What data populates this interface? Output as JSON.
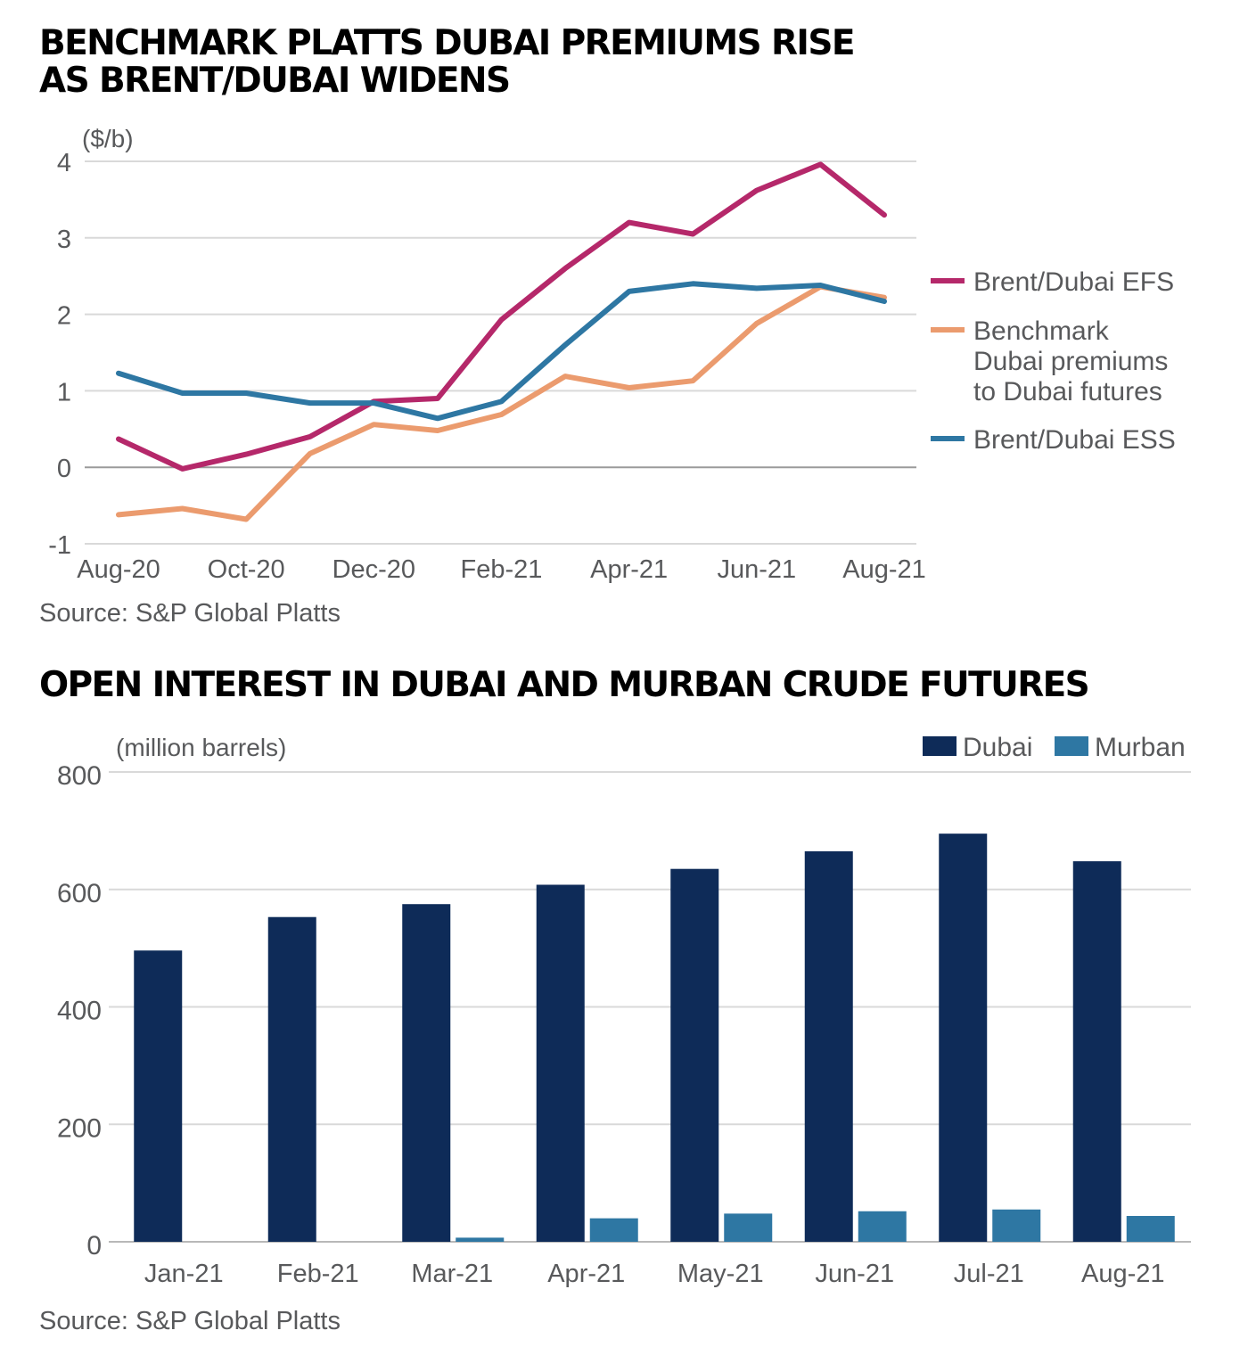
{
  "chart1": {
    "title_lines": [
      "BENCHMARK PLATTS DUBAI PREMIUMS RISE",
      "AS BRENT/DUBAI WIDENS"
    ],
    "source": "Source: S&P Global Platts",
    "chart_data": {
      "type": "line",
      "unit_label": "($/b)",
      "x": [
        "Aug-20",
        "Sep-20",
        "Oct-20",
        "Nov-20",
        "Dec-20",
        "Jan-21",
        "Feb-21",
        "Mar-21",
        "Apr-21",
        "May-21",
        "Jun-21",
        "Jul-21",
        "Aug-21"
      ],
      "x_tick_labels": [
        "Aug-20",
        "Oct-20",
        "Dec-20",
        "Feb-21",
        "Apr-21",
        "Jun-21",
        "Aug-21"
      ],
      "y_ticks": [
        "4",
        "3",
        "2",
        "1",
        "0",
        "-1"
      ],
      "ylim": [
        -1,
        4
      ],
      "legend_position": "right",
      "grid": true,
      "series": [
        {
          "name": "Brent/Dubai EFS",
          "color": "#b5286a",
          "values": [
            0.37,
            -0.02,
            0.17,
            0.4,
            0.86,
            0.9,
            1.93,
            2.6,
            3.2,
            3.05,
            3.62,
            3.96,
            3.3
          ]
        },
        {
          "name": "Benchmark Dubai premiums to Dubai futures",
          "color": "#eb9b6e",
          "legend_lines": [
            "Benchmark",
            "Dubai premiums",
            "to Dubai futures"
          ],
          "values": [
            -0.62,
            -0.54,
            -0.68,
            0.18,
            0.56,
            0.48,
            0.69,
            1.19,
            1.04,
            1.13,
            1.88,
            2.36,
            2.22
          ]
        },
        {
          "name": "Brent/Dubai ESS",
          "color": "#2e77a3",
          "values": [
            1.23,
            0.97,
            0.97,
            0.84,
            0.84,
            0.64,
            0.86,
            1.6,
            2.3,
            2.4,
            2.34,
            2.38,
            2.17
          ]
        }
      ]
    }
  },
  "chart2": {
    "title": "OPEN INTEREST IN DUBAI AND MURBAN CRUDE FUTURES",
    "source": "Source: S&P Global Platts",
    "chart_data": {
      "type": "bar",
      "unit_label": "(million barrels)",
      "categories": [
        "Jan-21",
        "Feb-21",
        "Mar-21",
        "Apr-21",
        "May-21",
        "Jun-21",
        "Jul-21",
        "Aug-21"
      ],
      "y_ticks": [
        "800",
        "600",
        "400",
        "200",
        "0"
      ],
      "ylim": [
        0,
        800
      ],
      "legend_position": "top-right",
      "grid": true,
      "series": [
        {
          "name": "Dubai",
          "color": "#0e2b58",
          "values": [
            496,
            553,
            575,
            608,
            635,
            665,
            695,
            648
          ]
        },
        {
          "name": "Murban",
          "color": "#2e77a3",
          "values": [
            0,
            0,
            7,
            40,
            48,
            52,
            55,
            44
          ]
        }
      ]
    }
  }
}
